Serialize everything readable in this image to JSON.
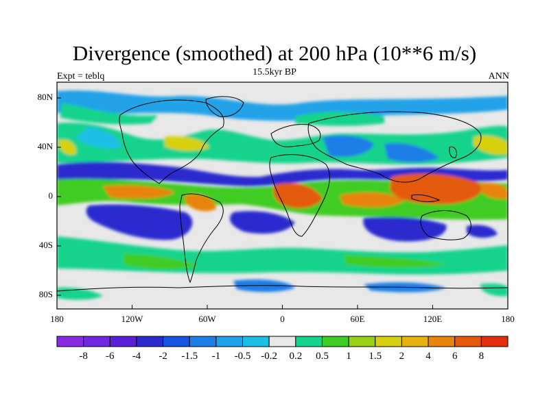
{
  "header": {
    "title": "Divergence (smoothed) at 200 hPa (10**6 m/s)",
    "subtitle": "15.5kyr BP",
    "left_label": "Expt = teblq",
    "right_label": "ANN"
  },
  "axes": {
    "lat_labels": [
      "80N",
      "40N",
      "0",
      "40S",
      "80S"
    ],
    "lon_labels": [
      "180",
      "120W",
      "60W",
      "0",
      "60E",
      "120E",
      "180"
    ]
  },
  "colorbar": {
    "colors": [
      "#8a2be2",
      "#7128e0",
      "#5a1fd6",
      "#2b2bcf",
      "#1656e0",
      "#1e7ee6",
      "#20a2e8",
      "#1bbfe3",
      "#e8e8e8",
      "#15d38c",
      "#3fcc23",
      "#9ad018",
      "#d7d011",
      "#e6b30e",
      "#e8840c",
      "#e35a0c",
      "#e2300e"
    ],
    "labels": [
      "-8",
      "-6",
      "-4",
      "-2",
      "-1.5",
      "-1",
      "-0.5",
      "-0.2",
      "0.2",
      "0.5",
      "1",
      "1.5",
      "2",
      "4",
      "6",
      "8"
    ]
  },
  "map_colors": {
    "ocean": "#e8e8e8",
    "strong_neg": "#2b2bcf",
    "mid_neg": "#1e7ee6",
    "weak_neg": "#20a2e8",
    "vweak_neg": "#1bbfe3",
    "vweak_pos": "#15d38c",
    "weak_pos": "#3fcc23",
    "mid_pos": "#d7d011",
    "strong_pos": "#e8840c",
    "vstrong_pos": "#e35a0c"
  }
}
